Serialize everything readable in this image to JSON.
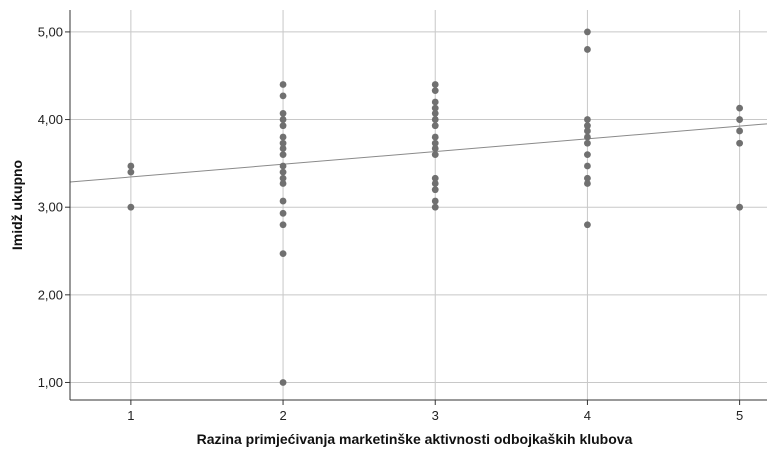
{
  "chart_data": {
    "type": "scatter",
    "title": "",
    "xlabel": "Razina primjećivanja marketinške aktivnosti odbojkaških klubova",
    "ylabel": "Imidž ukupno",
    "xlim": [
      0.6,
      5.18
    ],
    "ylim": [
      0.8,
      5.25
    ],
    "x_ticks": [
      1,
      2,
      3,
      4,
      5
    ],
    "x_tick_labels": [
      "1",
      "2",
      "3",
      "4",
      "5"
    ],
    "y_ticks": [
      1,
      2,
      3,
      4,
      5
    ],
    "y_tick_labels": [
      "1,00",
      "2,00",
      "3,00",
      "4,00",
      "5,00"
    ],
    "grid": true,
    "colors": {
      "points": "#707070",
      "fit_line": "#8a8a8a",
      "grid": "#c8c8c8",
      "axis": "#333333"
    },
    "fit_line": {
      "intercept": 3.2,
      "slope": 0.145
    },
    "points": [
      [
        1,
        3.47
      ],
      [
        1,
        3.4
      ],
      [
        1,
        3.0
      ],
      [
        2,
        4.4
      ],
      [
        2,
        4.27
      ],
      [
        2,
        4.07
      ],
      [
        2,
        4.0
      ],
      [
        2,
        3.93
      ],
      [
        2,
        3.8
      ],
      [
        2,
        3.73
      ],
      [
        2,
        3.67
      ],
      [
        2,
        3.6
      ],
      [
        2,
        3.47
      ],
      [
        2,
        3.4
      ],
      [
        2,
        3.33
      ],
      [
        2,
        3.27
      ],
      [
        2,
        3.07
      ],
      [
        2,
        2.93
      ],
      [
        2,
        2.8
      ],
      [
        2,
        2.47
      ],
      [
        2,
        1.0
      ],
      [
        3,
        4.4
      ],
      [
        3,
        4.33
      ],
      [
        3,
        4.2
      ],
      [
        3,
        4.13
      ],
      [
        3,
        4.07
      ],
      [
        3,
        4.0
      ],
      [
        3,
        3.93
      ],
      [
        3,
        3.8
      ],
      [
        3,
        3.73
      ],
      [
        3,
        3.67
      ],
      [
        3,
        3.6
      ],
      [
        3,
        3.33
      ],
      [
        3,
        3.27
      ],
      [
        3,
        3.2
      ],
      [
        3,
        3.07
      ],
      [
        3,
        3.0
      ],
      [
        4,
        5.0
      ],
      [
        4,
        4.8
      ],
      [
        4,
        4.0
      ],
      [
        4,
        3.93
      ],
      [
        4,
        3.87
      ],
      [
        4,
        3.8
      ],
      [
        4,
        3.73
      ],
      [
        4,
        3.6
      ],
      [
        4,
        3.47
      ],
      [
        4,
        3.33
      ],
      [
        4,
        3.27
      ],
      [
        4,
        2.8
      ],
      [
        5,
        4.13
      ],
      [
        5,
        4.0
      ],
      [
        5,
        3.87
      ],
      [
        5,
        3.73
      ],
      [
        5,
        3.0
      ]
    ]
  }
}
